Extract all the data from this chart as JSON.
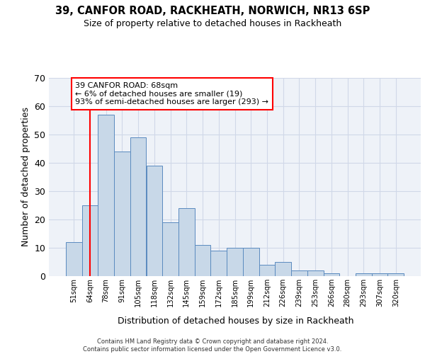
{
  "title": "39, CANFOR ROAD, RACKHEATH, NORWICH, NR13 6SP",
  "subtitle": "Size of property relative to detached houses in Rackheath",
  "xlabel": "Distribution of detached houses by size in Rackheath",
  "ylabel": "Number of detached properties",
  "categories": [
    "51sqm",
    "64sqm",
    "78sqm",
    "91sqm",
    "105sqm",
    "118sqm",
    "132sqm",
    "145sqm",
    "159sqm",
    "172sqm",
    "185sqm",
    "199sqm",
    "212sqm",
    "226sqm",
    "239sqm",
    "253sqm",
    "266sqm",
    "280sqm",
    "293sqm",
    "307sqm",
    "320sqm"
  ],
  "values": [
    12,
    25,
    57,
    44,
    49,
    39,
    19,
    24,
    11,
    9,
    10,
    10,
    4,
    5,
    2,
    2,
    1,
    0,
    1,
    1,
    1
  ],
  "bar_color": "#c8d8e8",
  "bar_edge_color": "#5a8abf",
  "grid_color": "#d0d8e8",
  "bg_color": "#eef2f8",
  "red_line_x": 1,
  "annotation_text": "39 CANFOR ROAD: 68sqm\n← 6% of detached houses are smaller (19)\n93% of semi-detached houses are larger (293) →",
  "annotation_box_color": "white",
  "annotation_box_edge": "red",
  "footer": "Contains HM Land Registry data © Crown copyright and database right 2024.\nContains public sector information licensed under the Open Government Licence v3.0.",
  "ylim": [
    0,
    70
  ],
  "yticks": [
    0,
    10,
    20,
    30,
    40,
    50,
    60,
    70
  ]
}
